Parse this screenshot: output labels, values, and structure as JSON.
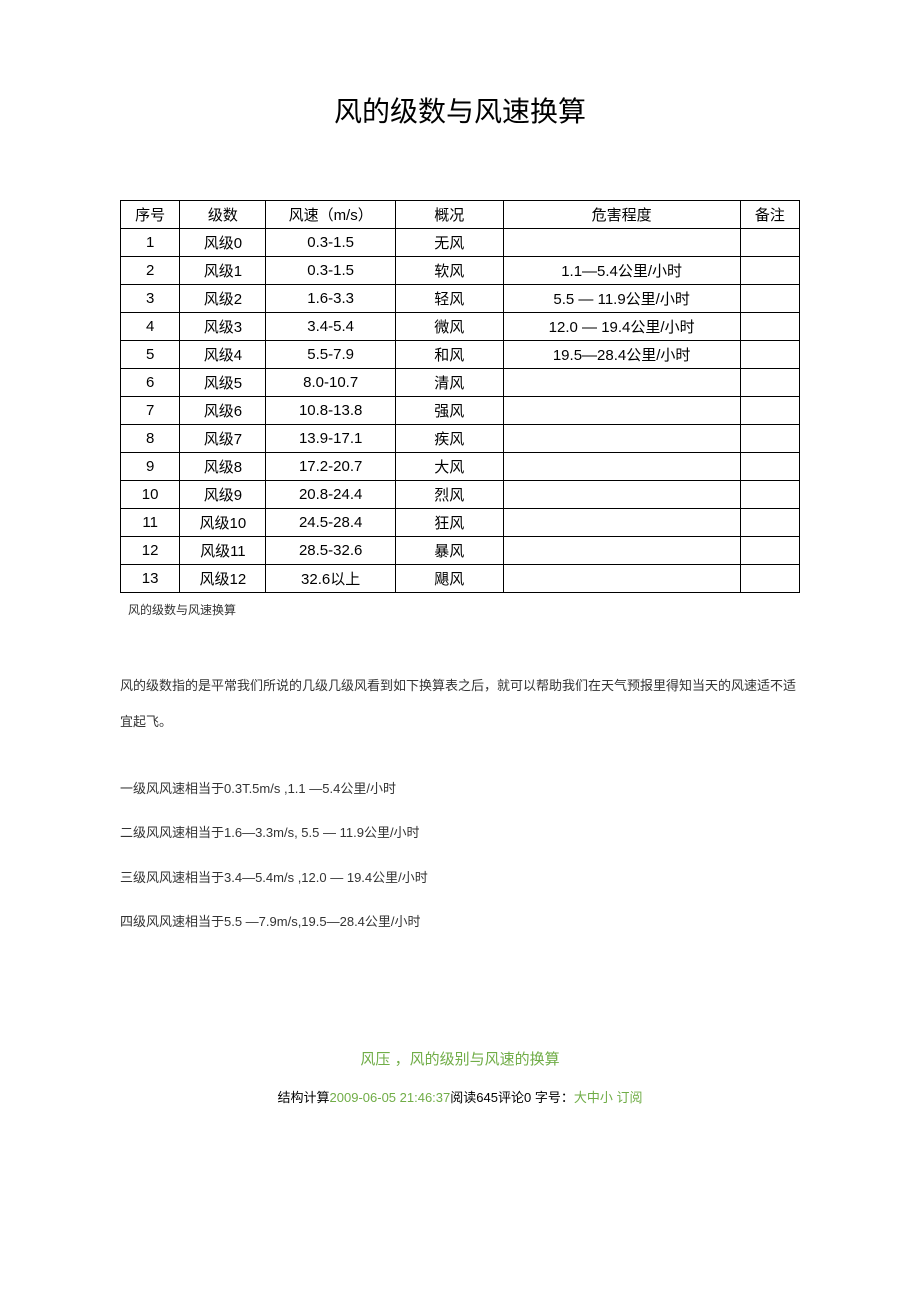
{
  "title": "风的级数与风速换算",
  "table": {
    "headers": [
      "序号",
      "级数",
      "风速（m/s）",
      "概况",
      "危害程度",
      "备注"
    ],
    "rows": [
      [
        "1",
        "风级0",
        "0.3-1.5",
        "无风",
        "",
        ""
      ],
      [
        "2",
        "风级1",
        "0.3-1.5",
        "软风",
        "1.1—5.4公里/小时",
        ""
      ],
      [
        "3",
        "风级2",
        "1.6-3.3",
        "轻风",
        "5.5 — 11.9公里/小时",
        ""
      ],
      [
        "4",
        "风级3",
        "3.4-5.4",
        "微风",
        "12.0 — 19.4公里/小时",
        ""
      ],
      [
        "5",
        "风级4",
        "5.5-7.9",
        "和风",
        "19.5—28.4公里/小时",
        ""
      ],
      [
        "6",
        "风级5",
        "8.0-10.7",
        "清风",
        "",
        ""
      ],
      [
        "7",
        "风级6",
        "10.8-13.8",
        "强风",
        "",
        ""
      ],
      [
        "8",
        "风级7",
        "13.9-17.1",
        "疾风",
        "",
        ""
      ],
      [
        "9",
        "风级8",
        "17.2-20.7",
        "大风",
        "",
        ""
      ],
      [
        "10",
        "风级9",
        "20.8-24.4",
        "烈风",
        "",
        ""
      ],
      [
        "11",
        "风级10",
        "24.5-28.4",
        "狂风",
        "",
        ""
      ],
      [
        "12",
        "风级11",
        "28.5-32.6",
        "暴风",
        "",
        ""
      ],
      [
        "13",
        "风级12",
        "32.6以上",
        "飓风",
        "",
        ""
      ]
    ]
  },
  "caption": "风的级数与风速换算",
  "intro": "风的级数指的是平常我们所说的几级几级风看到如下换算表之后，就可以帮助我们在天气预报里得知当天的风速适不适宜起飞。",
  "lines": [
    "一级风风速相当于0.3T.5m/s ,1.1 —5.4公里/小时",
    "二级风风速相当于1.6—3.3m/s,  5.5 — 11.9公里/小时",
    "三级风风速相当于3.4—5.4m/s ,12.0 — 19.4公里/小时",
    "四级风风速相当于5.5 —7.9m/s,19.5—28.4公里/小时"
  ],
  "subtitle": "风压 ，风的级别与风速的换算",
  "meta": {
    "prefix": "结构计算",
    "datetime": "2009-06-05 21:46:37",
    "reads_label": "阅读",
    "reads": "645",
    "comments_label": "评论",
    "comments": "0",
    "font_label": " 字号：",
    "font_options": "大中小 ",
    "subscribe": "订阅"
  },
  "colors": {
    "text": "#000000",
    "accent": "#70AD47",
    "border": "#000000",
    "background": "#ffffff"
  }
}
